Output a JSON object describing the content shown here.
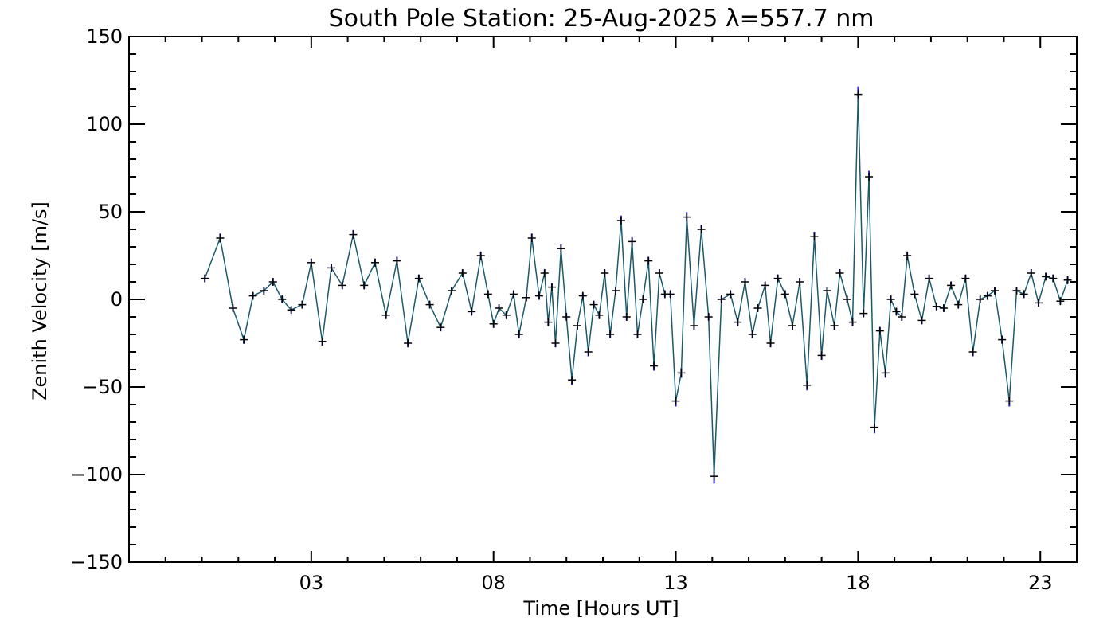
{
  "chart_data": {
    "type": "line",
    "title": "South Pole Station: 25-Aug-2025 λ=557.7 nm",
    "xlabel": "Time [Hours UT]",
    "ylabel": "Zenith Velocity [m/s]",
    "xlim": [
      -2,
      24
    ],
    "ylim": [
      -150,
      150
    ],
    "x_ticks": [
      3,
      8,
      13,
      18,
      23
    ],
    "x_tick_labels": [
      "03",
      "08",
      "13",
      "18",
      "23"
    ],
    "y_ticks": [
      -150,
      -100,
      -50,
      0,
      50,
      100,
      150
    ],
    "y_tick_labels": [
      "−150",
      "−100",
      "−50",
      "0",
      "50",
      "100",
      "150"
    ],
    "x_minor_step": 1,
    "y_minor_step": 10,
    "grid": false,
    "legend": "none",
    "marker": "+",
    "colors": {
      "line": "#1d5a6a",
      "error_bar": "#2222dd",
      "marker": "#000000",
      "axes": "#000000"
    },
    "series": [
      {
        "name": "Zenith Velocity",
        "x": [
          0.08,
          0.5,
          0.85,
          1.15,
          1.4,
          1.7,
          1.95,
          2.2,
          2.45,
          2.75,
          3.0,
          3.3,
          3.55,
          3.85,
          4.15,
          4.45,
          4.75,
          5.05,
          5.35,
          5.65,
          5.95,
          6.25,
          6.55,
          6.85,
          7.15,
          7.4,
          7.65,
          7.85,
          8.0,
          8.15,
          8.35,
          8.55,
          8.7,
          8.9,
          9.05,
          9.25,
          9.4,
          9.5,
          9.6,
          9.7,
          9.85,
          10.0,
          10.15,
          10.3,
          10.45,
          10.6,
          10.75,
          10.9,
          11.05,
          11.2,
          11.35,
          11.5,
          11.65,
          11.8,
          11.95,
          12.1,
          12.25,
          12.4,
          12.55,
          12.7,
          12.85,
          13.0,
          13.15,
          13.3,
          13.5,
          13.7,
          13.9,
          14.05,
          14.25,
          14.5,
          14.7,
          14.9,
          15.1,
          15.25,
          15.45,
          15.6,
          15.8,
          16.0,
          16.2,
          16.4,
          16.6,
          16.8,
          17.0,
          17.15,
          17.35,
          17.5,
          17.7,
          17.85,
          18.0,
          18.15,
          18.3,
          18.45,
          18.6,
          18.75,
          18.9,
          19.05,
          19.2,
          19.35,
          19.55,
          19.75,
          19.95,
          20.15,
          20.35,
          20.55,
          20.75,
          20.95,
          21.15,
          21.35,
          21.55,
          21.75,
          21.95,
          22.15,
          22.35,
          22.55,
          22.75,
          22.95,
          23.15,
          23.35,
          23.55,
          23.75
        ],
        "y": [
          12,
          35,
          -5,
          -23,
          2,
          5,
          10,
          0,
          -6,
          -3,
          21,
          -24,
          18,
          8,
          37,
          8,
          21,
          -9,
          22,
          -25,
          12,
          -3,
          -16,
          5,
          15,
          -7,
          25,
          3,
          -14,
          -5,
          -9,
          3,
          -20,
          1,
          35,
          2,
          15,
          -13,
          7,
          -25,
          29,
          -10,
          -46,
          -15,
          2,
          -30,
          -3,
          -9,
          15,
          -20,
          5,
          45,
          -10,
          33,
          -20,
          0,
          22,
          -38,
          15,
          3,
          3,
          -58,
          -42,
          47,
          -15,
          40,
          -10,
          -101,
          0,
          3,
          -13,
          10,
          -20,
          -5,
          8,
          -25,
          12,
          3,
          -15,
          10,
          -49,
          36,
          -32,
          5,
          -15,
          15,
          0,
          -13,
          117,
          -8,
          70,
          -73,
          -18,
          -42,
          0,
          -7,
          -10,
          25,
          3,
          -12,
          12,
          -4,
          -5,
          8,
          -3,
          12,
          -30,
          0,
          2,
          5,
          -23,
          -58,
          5,
          3,
          15,
          -2,
          13,
          12,
          -1,
          11
        ]
      }
    ]
  }
}
